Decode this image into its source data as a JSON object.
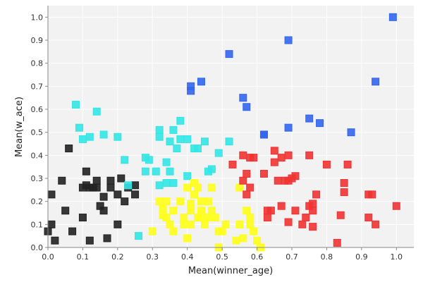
{
  "chart_data": {
    "type": "scatter",
    "xlabel": "Mean(winner_age)",
    "ylabel": "Mean(w_ace)",
    "xlim": [
      0.0,
      1.05
    ],
    "ylim": [
      0.0,
      1.05
    ],
    "xticks": [
      "0.0",
      "0.1",
      "0.2",
      "0.3",
      "0.4",
      "0.5",
      "0.6",
      "0.7",
      "0.8",
      "0.9",
      "1.0"
    ],
    "yticks": [
      "0.0",
      "0.1",
      "0.2",
      "0.3",
      "0.4",
      "0.5",
      "0.6",
      "0.7",
      "0.8",
      "0.9",
      "1.0"
    ],
    "grid": true,
    "colors": {
      "background": "#f2f2f2",
      "grid": "#ffffff"
    },
    "series": [
      {
        "color": "#222222",
        "points": [
          [
            0.0,
            0.07
          ],
          [
            0.01,
            0.23
          ],
          [
            0.01,
            0.1
          ],
          [
            0.02,
            0.03
          ],
          [
            0.04,
            0.29
          ],
          [
            0.05,
            0.16
          ],
          [
            0.06,
            0.43
          ],
          [
            0.07,
            0.07
          ],
          [
            0.1,
            0.26
          ],
          [
            0.11,
            0.33
          ],
          [
            0.11,
            0.27
          ],
          [
            0.12,
            0.26
          ],
          [
            0.12,
            0.03
          ],
          [
            0.13,
            0.26
          ],
          [
            0.14,
            0.29
          ],
          [
            0.14,
            0.26
          ],
          [
            0.15,
            0.18
          ],
          [
            0.16,
            0.22
          ],
          [
            0.16,
            0.16
          ],
          [
            0.18,
            0.29
          ],
          [
            0.18,
            0.26
          ],
          [
            0.2,
            0.23
          ],
          [
            0.2,
            0.1
          ],
          [
            0.21,
            0.3
          ],
          [
            0.22,
            0.2
          ],
          [
            0.23,
            0.26
          ],
          [
            0.25,
            0.27
          ],
          [
            0.25,
            0.23
          ],
          [
            0.17,
            0.04
          ],
          [
            0.1,
            0.13
          ]
        ]
      },
      {
        "color": "#33e6e6",
        "points": [
          [
            0.08,
            0.62
          ],
          [
            0.09,
            0.52
          ],
          [
            0.1,
            0.47
          ],
          [
            0.12,
            0.48
          ],
          [
            0.14,
            0.59
          ],
          [
            0.16,
            0.49
          ],
          [
            0.2,
            0.48
          ],
          [
            0.22,
            0.38
          ],
          [
            0.28,
            0.39
          ],
          [
            0.29,
            0.38
          ],
          [
            0.28,
            0.33
          ],
          [
            0.31,
            0.33
          ],
          [
            0.32,
            0.51
          ],
          [
            0.32,
            0.48
          ],
          [
            0.32,
            0.27
          ],
          [
            0.34,
            0.37
          ],
          [
            0.34,
            0.28
          ],
          [
            0.35,
            0.33
          ],
          [
            0.35,
            0.46
          ],
          [
            0.36,
            0.28
          ],
          [
            0.36,
            0.51
          ],
          [
            0.37,
            0.43
          ],
          [
            0.38,
            0.55
          ],
          [
            0.38,
            0.47
          ],
          [
            0.4,
            0.31
          ],
          [
            0.4,
            0.47
          ],
          [
            0.42,
            0.43
          ],
          [
            0.43,
            0.43
          ],
          [
            0.45,
            0.46
          ],
          [
            0.46,
            0.33
          ],
          [
            0.47,
            0.34
          ],
          [
            0.49,
            0.41
          ],
          [
            0.52,
            0.46
          ],
          [
            0.23,
            0.27
          ],
          [
            0.26,
            0.05
          ]
        ]
      },
      {
        "color": "#ffff1a",
        "points": [
          [
            0.3,
            0.07
          ],
          [
            0.32,
            0.2
          ],
          [
            0.33,
            0.14
          ],
          [
            0.33,
            0.17
          ],
          [
            0.34,
            0.2
          ],
          [
            0.34,
            0.13
          ],
          [
            0.35,
            0.1
          ],
          [
            0.36,
            0.16
          ],
          [
            0.36,
            0.07
          ],
          [
            0.38,
            0.2
          ],
          [
            0.39,
            0.13
          ],
          [
            0.39,
            0.1
          ],
          [
            0.4,
            0.26
          ],
          [
            0.41,
            0.19
          ],
          [
            0.41,
            0.16
          ],
          [
            0.41,
            0.1
          ],
          [
            0.42,
            0.28
          ],
          [
            0.42,
            0.23
          ],
          [
            0.43,
            0.13
          ],
          [
            0.43,
            0.26
          ],
          [
            0.44,
            0.16
          ],
          [
            0.44,
            0.13
          ],
          [
            0.44,
            0.2
          ],
          [
            0.45,
            0.1
          ],
          [
            0.46,
            0.2
          ],
          [
            0.46,
            0.13
          ],
          [
            0.47,
            0.16
          ],
          [
            0.47,
            0.26
          ],
          [
            0.48,
            0.13
          ],
          [
            0.49,
            0.07
          ],
          [
            0.5,
            0.07
          ],
          [
            0.51,
            0.1
          ],
          [
            0.54,
            0.03
          ],
          [
            0.55,
            0.26
          ],
          [
            0.55,
            0.1
          ],
          [
            0.57,
            0.16
          ],
          [
            0.58,
            0.13
          ],
          [
            0.58,
            0.1
          ],
          [
            0.59,
            0.07
          ],
          [
            0.6,
            0.03
          ],
          [
            0.61,
            0.0
          ],
          [
            0.4,
            0.04
          ],
          [
            0.49,
            0.0
          ],
          [
            0.56,
            0.04
          ]
        ]
      },
      {
        "color": "#f03333",
        "points": [
          [
            0.53,
            0.36
          ],
          [
            0.56,
            0.29
          ],
          [
            0.56,
            0.4
          ],
          [
            0.57,
            0.23
          ],
          [
            0.57,
            0.32
          ],
          [
            0.58,
            0.26
          ],
          [
            0.58,
            0.39
          ],
          [
            0.59,
            0.39
          ],
          [
            0.62,
            0.32
          ],
          [
            0.63,
            0.13
          ],
          [
            0.63,
            0.16
          ],
          [
            0.64,
            0.16
          ],
          [
            0.65,
            0.42
          ],
          [
            0.65,
            0.37
          ],
          [
            0.66,
            0.29
          ],
          [
            0.67,
            0.39
          ],
          [
            0.67,
            0.18
          ],
          [
            0.68,
            0.29
          ],
          [
            0.69,
            0.29
          ],
          [
            0.69,
            0.4
          ],
          [
            0.69,
            0.11
          ],
          [
            0.7,
            0.3
          ],
          [
            0.71,
            0.16
          ],
          [
            0.71,
            0.31
          ],
          [
            0.73,
            0.1
          ],
          [
            0.74,
            0.13
          ],
          [
            0.75,
            0.4
          ],
          [
            0.75,
            0.18
          ],
          [
            0.76,
            0.09
          ],
          [
            0.76,
            0.16
          ],
          [
            0.76,
            0.19
          ],
          [
            0.77,
            0.23
          ],
          [
            0.8,
            0.36
          ],
          [
            0.83,
            0.02
          ],
          [
            0.84,
            0.14
          ],
          [
            0.85,
            0.24
          ],
          [
            0.85,
            0.28
          ],
          [
            0.86,
            0.36
          ],
          [
            0.92,
            0.13
          ],
          [
            0.92,
            0.23
          ],
          [
            0.93,
            0.23
          ],
          [
            0.94,
            0.1
          ],
          [
            1.0,
            0.18
          ]
        ]
      },
      {
        "color": "#3366ee",
        "points": [
          [
            0.41,
            0.68
          ],
          [
            0.41,
            0.7
          ],
          [
            0.44,
            0.72
          ],
          [
            0.52,
            0.84
          ],
          [
            0.56,
            0.65
          ],
          [
            0.57,
            0.61
          ],
          [
            0.62,
            0.49
          ],
          [
            0.62,
            0.49
          ],
          [
            0.69,
            0.9
          ],
          [
            0.69,
            0.52
          ],
          [
            0.75,
            0.56
          ],
          [
            0.78,
            0.54
          ],
          [
            0.87,
            0.5
          ],
          [
            0.94,
            0.72
          ],
          [
            0.99,
            1.0
          ]
        ]
      }
    ]
  }
}
